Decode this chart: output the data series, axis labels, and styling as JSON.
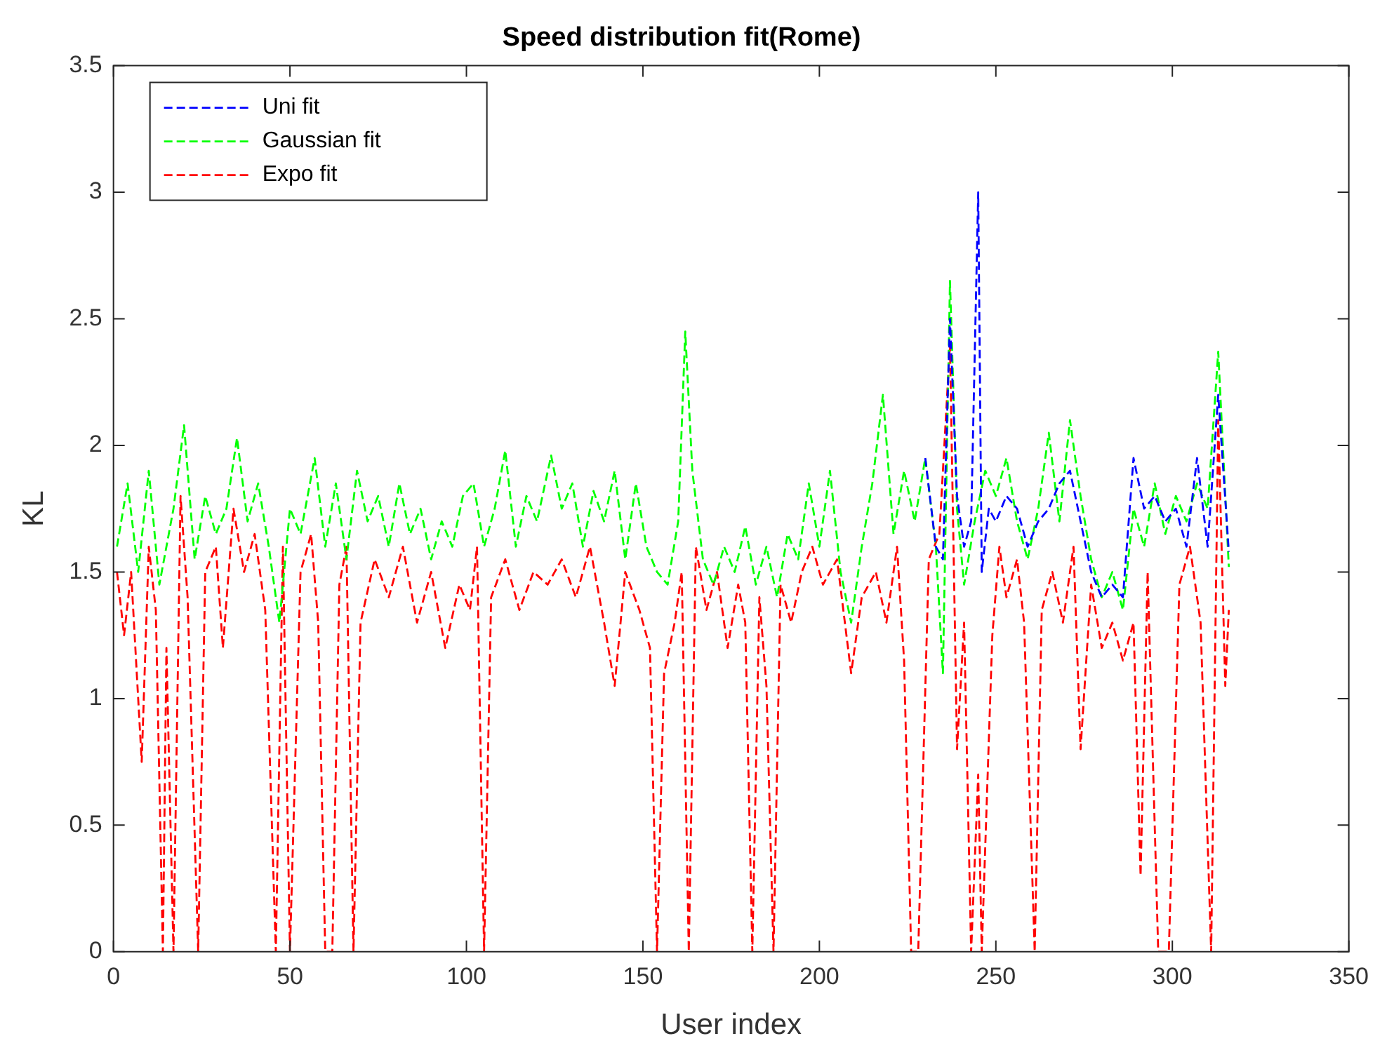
{
  "chart_data": {
    "type": "line",
    "title": "Speed distribution fit(Rome)",
    "xlabel": "User index",
    "ylabel": "KL",
    "xlim": [
      0,
      350
    ],
    "xticks": [
      0,
      50,
      100,
      150,
      200,
      250,
      300,
      350
    ],
    "ylim": [
      0,
      3.5
    ],
    "yticks": [
      0,
      0.5,
      1,
      1.5,
      2,
      2.5,
      3,
      3.5
    ],
    "legend": "top left",
    "marker": "none",
    "line_style": "dashed",
    "grid": false,
    "series": [
      {
        "name": "Uni fit",
        "color": "#0000ff",
        "x": [
          230,
          233,
          235,
          237,
          239,
          241,
          243,
          245,
          246,
          248,
          250,
          253,
          256,
          259,
          262,
          265,
          268,
          271,
          274,
          277,
          280,
          283,
          286,
          289,
          292,
          295,
          298,
          301,
          304,
          307,
          310,
          313,
          316
        ],
        "values": [
          1.95,
          1.6,
          1.55,
          2.5,
          1.8,
          1.6,
          1.7,
          3.0,
          1.5,
          1.75,
          1.7,
          1.8,
          1.75,
          1.6,
          1.7,
          1.75,
          1.85,
          1.9,
          1.7,
          1.5,
          1.4,
          1.45,
          1.4,
          1.95,
          1.75,
          1.8,
          1.7,
          1.75,
          1.6,
          1.95,
          1.6,
          2.2,
          1.58
        ]
      },
      {
        "name": "Gaussian fit",
        "color": "#00ff00",
        "x": [
          1,
          4,
          7,
          10,
          13,
          17,
          20,
          23,
          26,
          29,
          32,
          35,
          38,
          41,
          44,
          47,
          50,
          53,
          57,
          60,
          63,
          66,
          69,
          72,
          75,
          78,
          81,
          84,
          87,
          90,
          93,
          96,
          99,
          102,
          105,
          108,
          111,
          114,
          117,
          120,
          124,
          127,
          130,
          133,
          136,
          139,
          142,
          145,
          148,
          151,
          154,
          157,
          160,
          162,
          164,
          167,
          170,
          173,
          176,
          179,
          182,
          185,
          188,
          191,
          194,
          197,
          200,
          203,
          206,
          209,
          212,
          215,
          218,
          221,
          224,
          227,
          230,
          233,
          235,
          237,
          239,
          241,
          244,
          247,
          250,
          253,
          256,
          259,
          262,
          265,
          268,
          271,
          274,
          277,
          280,
          283,
          286,
          289,
          292,
          295,
          298,
          301,
          304,
          307,
          310,
          313,
          316
        ],
        "values": [
          1.6,
          1.85,
          1.5,
          1.9,
          1.45,
          1.75,
          2.08,
          1.55,
          1.8,
          1.65,
          1.75,
          2.03,
          1.7,
          1.85,
          1.6,
          1.3,
          1.75,
          1.65,
          1.95,
          1.6,
          1.85,
          1.55,
          1.9,
          1.7,
          1.8,
          1.6,
          1.85,
          1.65,
          1.75,
          1.55,
          1.7,
          1.6,
          1.8,
          1.85,
          1.6,
          1.75,
          1.98,
          1.6,
          1.8,
          1.7,
          1.96,
          1.75,
          1.85,
          1.6,
          1.82,
          1.7,
          1.9,
          1.55,
          1.85,
          1.6,
          1.5,
          1.45,
          1.7,
          2.45,
          1.9,
          1.55,
          1.45,
          1.6,
          1.5,
          1.68,
          1.45,
          1.6,
          1.4,
          1.65,
          1.55,
          1.85,
          1.6,
          1.9,
          1.5,
          1.3,
          1.6,
          1.85,
          2.2,
          1.65,
          1.9,
          1.7,
          1.95,
          1.6,
          1.1,
          2.65,
          1.75,
          1.45,
          1.7,
          1.9,
          1.8,
          1.95,
          1.7,
          1.55,
          1.75,
          2.05,
          1.7,
          2.1,
          1.8,
          1.55,
          1.4,
          1.5,
          1.35,
          1.75,
          1.6,
          1.85,
          1.65,
          1.8,
          1.7,
          1.85,
          1.75,
          2.37,
          1.52
        ]
      },
      {
        "name": "Expo fit",
        "color": "#ff0000",
        "x": [
          1,
          3,
          5,
          8,
          10,
          12,
          14,
          15,
          17,
          19,
          21,
          24,
          26,
          29,
          31,
          34,
          37,
          40,
          43,
          46,
          48,
          50,
          53,
          56,
          58,
          60,
          62,
          64,
          66,
          68,
          70,
          74,
          78,
          82,
          86,
          90,
          94,
          98,
          101,
          103,
          105,
          107,
          111,
          115,
          119,
          123,
          127,
          131,
          135,
          139,
          142,
          145,
          149,
          152,
          154,
          156,
          159,
          161,
          163,
          165,
          168,
          171,
          174,
          177,
          179,
          181,
          183,
          185,
          187,
          189,
          192,
          195,
          198,
          201,
          205,
          209,
          212,
          216,
          219,
          222,
          224,
          226,
          228,
          231,
          234,
          237,
          239,
          241,
          243,
          245,
          246,
          249,
          251,
          253,
          256,
          258,
          261,
          263,
          266,
          269,
          272,
          274,
          277,
          280,
          283,
          286,
          289,
          291,
          293,
          296,
          299,
          302,
          305,
          308,
          311,
          313,
          315,
          316
        ],
        "values": [
          1.5,
          1.25,
          1.5,
          0.75,
          1.6,
          1.35,
          0,
          1.2,
          0,
          1.8,
          1.4,
          0,
          1.5,
          1.6,
          1.2,
          1.75,
          1.5,
          1.65,
          1.35,
          0,
          1.6,
          0,
          1.5,
          1.65,
          1.3,
          0,
          0,
          1.45,
          1.6,
          0,
          1.3,
          1.55,
          1.4,
          1.6,
          1.3,
          1.5,
          1.2,
          1.45,
          1.35,
          1.6,
          0,
          1.4,
          1.55,
          1.35,
          1.5,
          1.45,
          1.55,
          1.4,
          1.6,
          1.3,
          1.05,
          1.5,
          1.35,
          1.2,
          0,
          1.1,
          1.3,
          1.5,
          0,
          1.6,
          1.35,
          1.5,
          1.2,
          1.45,
          1.3,
          0,
          1.4,
          1.05,
          0,
          1.45,
          1.3,
          1.5,
          1.6,
          1.45,
          1.55,
          1.1,
          1.4,
          1.5,
          1.3,
          1.6,
          1.15,
          0,
          0,
          1.55,
          1.65,
          2.4,
          0.8,
          1.3,
          0,
          0.7,
          0,
          1.25,
          1.6,
          1.4,
          1.55,
          1.3,
          0,
          1.35,
          1.5,
          1.3,
          1.6,
          0.8,
          1.45,
          1.2,
          1.3,
          1.15,
          1.3,
          0.3,
          1.5,
          0,
          0,
          1.45,
          1.6,
          1.3,
          0,
          2.1,
          1.05,
          1.35
        ]
      }
    ]
  }
}
